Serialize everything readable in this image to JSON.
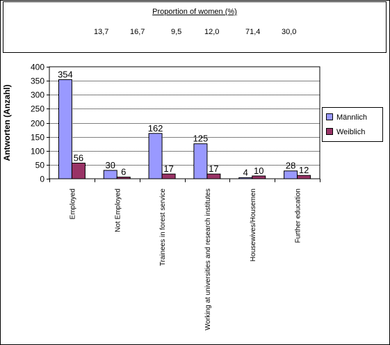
{
  "women_box": {
    "title": "Proportion of women (%)",
    "values": [
      "13,7",
      "16,7",
      "9,5",
      "12,0",
      "71,4",
      "30,0"
    ]
  },
  "chart_data": {
    "type": "bar",
    "title": "",
    "xlabel": "",
    "ylabel": "Antworten (Anzahl)",
    "ylim": [
      0,
      400
    ],
    "yticks": [
      0,
      50,
      100,
      150,
      200,
      250,
      300,
      350,
      400
    ],
    "grid": true,
    "legend_position": "right",
    "categories": [
      "Employed",
      "Not Employed",
      "Trainees in forest service",
      "Working at universities and research institutes",
      "Housewives/Housemen",
      "Further education"
    ],
    "series": [
      {
        "name": "Männlich",
        "color": "#9999ff",
        "values": [
          354,
          30,
          162,
          125,
          4,
          28
        ]
      },
      {
        "name": "Weiblich",
        "color": "#993366",
        "values": [
          56,
          6,
          17,
          17,
          10,
          12
        ]
      }
    ]
  }
}
